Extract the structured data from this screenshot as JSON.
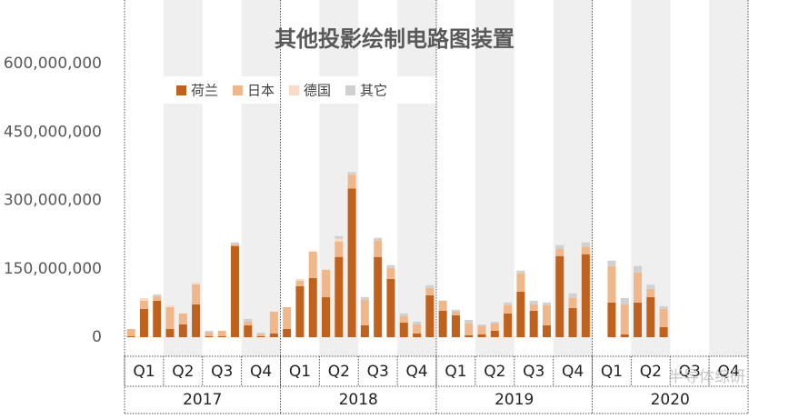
{
  "chart_data": {
    "type": "stacked-bar",
    "title": "其他投影绘制电路图装置",
    "quarter_labels": [
      "Q1",
      "Q2",
      "Q3",
      "Q4",
      "Q1",
      "Q2",
      "Q3",
      "Q4",
      "Q1",
      "Q2",
      "Q3",
      "Q4",
      "Q1",
      "Q2",
      "Q3",
      "Q4"
    ],
    "year_labels": [
      "2017",
      "2018",
      "2019",
      "2020"
    ],
    "ylim": [
      0,
      600000000
    ],
    "yticks": [
      0,
      {
        "value": 150000000,
        "label": "150,000,000"
      },
      {
        "value": 300000000,
        "label": "300,000,000"
      },
      {
        "value": 450000000,
        "label": "450,000,000"
      },
      {
        "value": 600000000,
        "label": "600,000,000"
      }
    ],
    "legend": "top",
    "series": [
      {
        "name": "荷兰",
        "color": "#c0611d",
        "values": [
          2000000,
          62000000,
          80000000,
          18000000,
          28000000,
          72000000,
          2000000,
          2000000,
          200000000,
          26000000,
          2000000,
          8000000,
          18000000,
          112000000,
          130000000,
          88000000,
          176000000,
          326000000,
          26000000,
          176000000,
          128000000,
          32000000,
          8000000,
          92000000,
          58000000,
          48000000,
          4000000,
          6000000,
          14000000,
          52000000,
          100000000,
          58000000,
          26000000,
          178000000,
          64000000,
          182000000,
          null,
          76000000,
          6000000,
          76000000,
          88000000,
          22000000,
          null,
          null,
          null,
          null,
          null,
          null
        ]
      },
      {
        "name": "日本",
        "color": "#f0b78a",
        "values": [
          16000000,
          18000000,
          10000000,
          48000000,
          24000000,
          44000000,
          8000000,
          12000000,
          4000000,
          8000000,
          4000000,
          48000000,
          48000000,
          12000000,
          58000000,
          60000000,
          34000000,
          30000000,
          56000000,
          36000000,
          24000000,
          14000000,
          20000000,
          16000000,
          22000000,
          8000000,
          26000000,
          18000000,
          16000000,
          18000000,
          40000000,
          14000000,
          44000000,
          16000000,
          22000000,
          16000000,
          null,
          80000000,
          66000000,
          66000000,
          18000000,
          40000000,
          null,
          null,
          null,
          null,
          null,
          null
        ]
      },
      {
        "name": "德国",
        "color": "#fadbc8",
        "values": [
          0,
          6000000,
          0,
          4000000,
          0,
          4000000,
          0,
          0,
          0,
          0,
          0,
          0,
          0,
          4000000,
          0,
          0,
          6000000,
          0,
          0,
          0,
          0,
          0,
          0,
          0,
          0,
          0,
          0,
          0,
          0,
          0,
          0,
          0,
          0,
          0,
          0,
          0,
          null,
          0,
          0,
          0,
          0,
          0,
          null,
          null,
          null,
          null,
          null,
          null
        ]
      },
      {
        "name": "其它",
        "color": "#d0d0d0",
        "values": [
          0,
          0,
          4000000,
          0,
          0,
          0,
          4000000,
          0,
          4000000,
          6000000,
          4000000,
          0,
          0,
          0,
          0,
          0,
          6000000,
          6000000,
          6000000,
          6000000,
          6000000,
          6000000,
          6000000,
          6000000,
          0,
          4000000,
          8000000,
          4000000,
          4000000,
          6000000,
          6000000,
          8000000,
          6000000,
          8000000,
          10000000,
          10000000,
          null,
          12000000,
          14000000,
          14000000,
          9000000,
          6000000,
          null,
          null,
          null,
          null,
          null,
          null
        ]
      }
    ],
    "watermark": "半导体综研"
  }
}
